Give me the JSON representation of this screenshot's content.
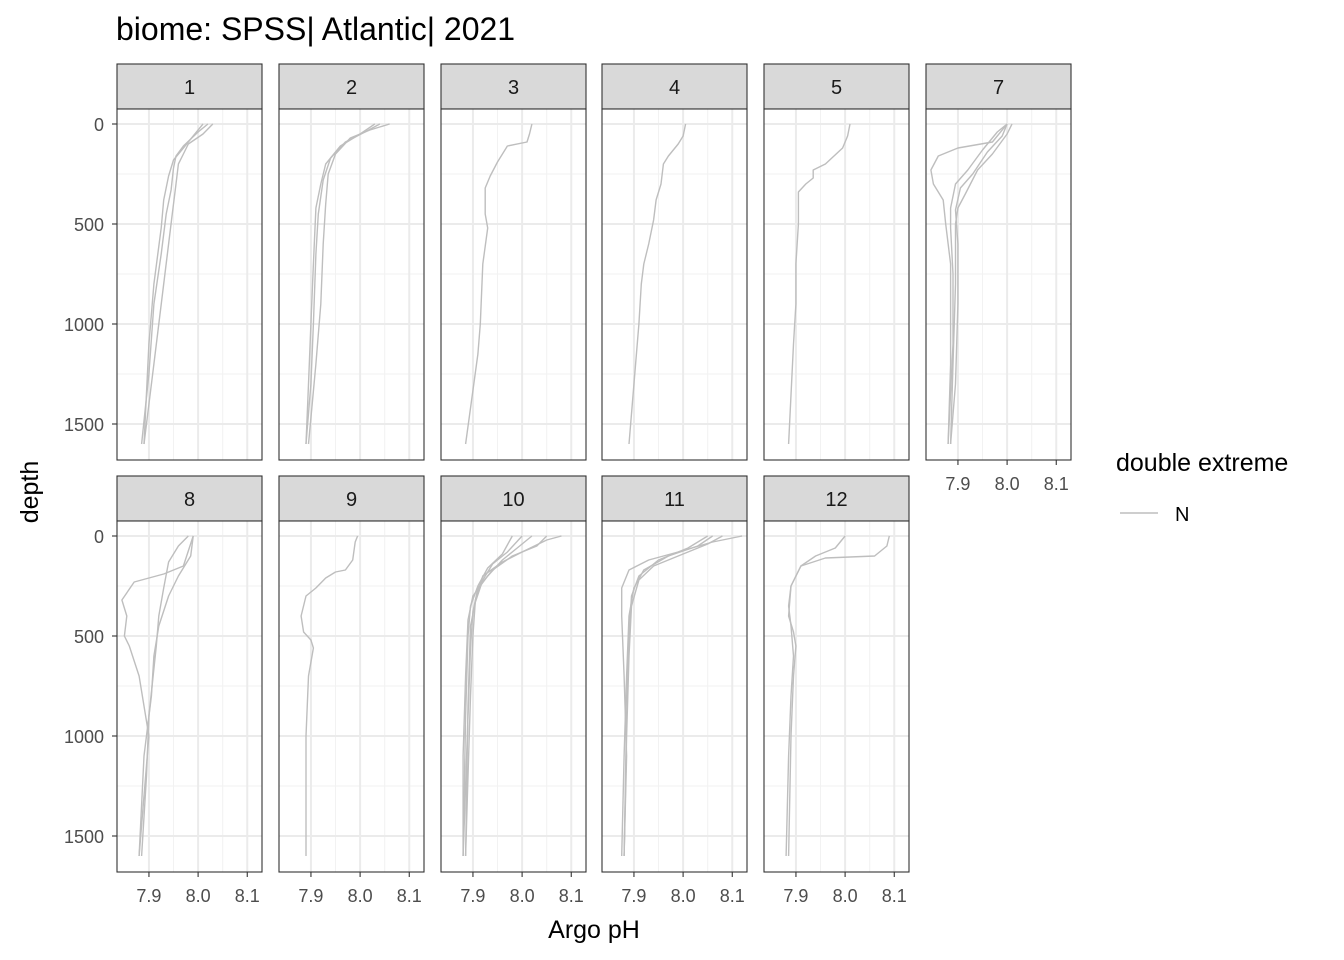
{
  "chart_data": {
    "type": "line",
    "title": "biome: SPSS| Atlantic| 2021",
    "xlabel": "Argo pH",
    "ylabel": "depth",
    "xlim": [
      7.835,
      8.13
    ],
    "ylim": [
      1680,
      -75
    ],
    "x_ticks": [
      7.9,
      8.0,
      8.1
    ],
    "x_tick_labels": [
      "7.9",
      "8.0",
      "8.1"
    ],
    "y_ticks": [
      0,
      500,
      1000,
      1500
    ],
    "y_tick_labels": [
      "0",
      "500",
      "1000",
      "1500"
    ],
    "y_reversed": true,
    "grid": true,
    "legend": {
      "title": "double extreme",
      "entries": [
        "N"
      ],
      "position": "right",
      "color": "#bebebe"
    },
    "series_color": "#bebebe",
    "panels": [
      {
        "label": "1",
        "profiles": [
          {
            "ph": [
              8.03,
              8.01,
              7.98,
              7.97,
              7.96,
              7.955,
              7.95,
              7.94,
              7.93,
              7.91,
              7.89
            ],
            "depth": [
              0,
              50,
              100,
              150,
              200,
              300,
              400,
              600,
              800,
              1200,
              1600
            ]
          },
          {
            "ph": [
              8.02,
              8.0,
              7.97,
              7.955,
              7.95,
              7.945,
              7.935,
              7.925,
              7.91,
              7.9,
              7.885
            ],
            "depth": [
              0,
              40,
              110,
              160,
              220,
              330,
              450,
              650,
              900,
              1250,
              1600
            ]
          },
          {
            "ph": [
              8.01,
              7.99,
              7.97,
              7.95,
              7.94,
              7.93,
              7.925,
              7.91,
              7.9,
              7.89
            ],
            "depth": [
              0,
              60,
              120,
              180,
              260,
              380,
              520,
              800,
              1100,
              1600
            ]
          }
        ]
      },
      {
        "label": "2",
        "profiles": [
          {
            "ph": [
              8.06,
              8.02,
              7.98,
              7.95,
              7.935,
              7.93,
              7.925,
              7.92,
              7.91,
              7.895
            ],
            "depth": [
              0,
              30,
              70,
              150,
              250,
              400,
              600,
              900,
              1200,
              1600
            ]
          },
          {
            "ph": [
              8.04,
              8.01,
              7.97,
              7.94,
              7.925,
              7.915,
              7.91,
              7.905,
              7.9,
              7.89
            ],
            "depth": [
              0,
              40,
              90,
              170,
              280,
              450,
              650,
              1000,
              1300,
              1600
            ]
          },
          {
            "ph": [
              8.03,
              8.0,
              7.96,
              7.93,
              7.92,
              7.91,
              7.905,
              7.9,
              7.895,
              7.89
            ],
            "depth": [
              0,
              50,
              110,
              200,
              300,
              420,
              700,
              1000,
              1300,
              1600
            ]
          }
        ]
      },
      {
        "label": "3",
        "profiles": [
          {
            "ph": [
              8.02,
              8.015,
              8.01,
              7.97,
              7.95,
              7.935,
              7.925,
              7.925,
              7.93,
              7.92,
              7.915,
              7.91,
              7.885
            ],
            "depth": [
              0,
              50,
              90,
              110,
              190,
              260,
              320,
              450,
              520,
              700,
              1000,
              1150,
              1600
            ]
          }
        ]
      },
      {
        "label": "4",
        "profiles": [
          {
            "ph": [
              8.005,
              8.0,
              7.99,
              7.97,
              7.96,
              7.955,
              7.945,
              7.94,
              7.93,
              7.92,
              7.915,
              7.91,
              7.89
            ],
            "depth": [
              0,
              60,
              100,
              160,
              200,
              300,
              380,
              480,
              600,
              700,
              800,
              1000,
              1600
            ]
          }
        ]
      },
      {
        "label": "5",
        "profiles": [
          {
            "ph": [
              8.01,
              8.005,
              7.995,
              7.96,
              7.935,
              7.935,
              7.92,
              7.905,
              7.905,
              7.9,
              7.9,
              7.895,
              7.885
            ],
            "depth": [
              0,
              60,
              120,
              200,
              230,
              270,
              300,
              340,
              500,
              700,
              900,
              1100,
              1600
            ]
          }
        ]
      },
      {
        "label": "7",
        "profiles": [
          {
            "ph": [
              8.0,
              7.97,
              7.9,
              7.86,
              7.845,
              7.85,
              7.87,
              7.875,
              7.885,
              7.885,
              7.88
            ],
            "depth": [
              0,
              90,
              120,
              160,
              230,
              300,
              380,
              500,
              700,
              1200,
              1600
            ]
          },
          {
            "ph": [
              8.01,
              8.0,
              7.97,
              7.94,
              7.915,
              7.9,
              7.895,
              7.895,
              7.89,
              7.885
            ],
            "depth": [
              0,
              50,
              150,
              230,
              350,
              420,
              500,
              800,
              1200,
              1600
            ]
          },
          {
            "ph": [
              8.0,
              7.99,
              7.96,
              7.93,
              7.905,
              7.895,
              7.9,
              7.9,
              7.895,
              7.885
            ],
            "depth": [
              0,
              60,
              140,
              250,
              320,
              430,
              600,
              900,
              1300,
              1600
            ]
          },
          {
            "ph": [
              8.0,
              7.98,
              7.95,
              7.92,
              7.895,
              7.885,
              7.885,
              7.89,
              7.89,
              7.88
            ],
            "depth": [
              0,
              40,
              130,
              230,
              300,
              420,
              520,
              750,
              1100,
              1600
            ]
          }
        ]
      },
      {
        "label": "8",
        "profiles": [
          {
            "ph": [
              7.99,
              7.97,
              7.93,
              7.87,
              7.845,
              7.855,
              7.85,
              7.86,
              7.88,
              7.9,
              7.88
            ],
            "depth": [
              0,
              150,
              190,
              230,
              320,
              400,
              500,
              550,
              700,
              1000,
              1600
            ]
          },
          {
            "ph": [
              7.99,
              7.985,
              7.96,
              7.94,
              7.92,
              7.91,
              7.905,
              7.89,
              7.88
            ],
            "depth": [
              0,
              100,
              200,
              300,
              450,
              600,
              800,
              1100,
              1600
            ]
          },
          {
            "ph": [
              7.98,
              7.96,
              7.94,
              7.93,
              7.92,
              7.915,
              7.9,
              7.895,
              7.885
            ],
            "depth": [
              0,
              50,
              130,
              260,
              400,
              550,
              900,
              1200,
              1600
            ]
          }
        ]
      },
      {
        "label": "9",
        "profiles": [
          {
            "ph": [
              7.995,
              7.99,
              7.985,
              7.97,
              7.95,
              7.93,
              7.91,
              7.89,
              7.88,
              7.885,
              7.9,
              7.905,
              7.895,
              7.89,
              7.89
            ],
            "depth": [
              0,
              30,
              120,
              170,
              180,
              210,
              260,
              300,
              400,
              480,
              520,
              560,
              700,
              1000,
              1600
            ]
          }
        ]
      },
      {
        "label": "10",
        "profiles": [
          {
            "ph": [
              8.08,
              8.05,
              8.0,
              7.96,
              7.92,
              7.905,
              7.9,
              7.895,
              7.89,
              7.885
            ],
            "depth": [
              0,
              20,
              80,
              130,
              200,
              320,
              500,
              800,
              1200,
              1600
            ]
          },
          {
            "ph": [
              8.05,
              8.03,
              7.98,
              7.94,
              7.91,
              7.9,
              7.895,
              7.89,
              7.885,
              7.88
            ],
            "depth": [
              0,
              50,
              100,
              170,
              260,
              380,
              560,
              900,
              1250,
              1600
            ]
          },
          {
            "ph": [
              8.02,
              7.99,
              7.96,
              7.93,
              7.9,
              7.89,
              7.885,
              7.88,
              7.88
            ],
            "depth": [
              0,
              60,
              120,
              200,
              300,
              420,
              700,
              1100,
              1600
            ]
          },
          {
            "ph": [
              7.98,
              7.96,
              7.93,
              7.91,
              7.895,
              7.89,
              7.885,
              7.88
            ],
            "depth": [
              0,
              90,
              160,
              250,
              350,
              500,
              900,
              1600
            ]
          },
          {
            "ph": [
              8.0,
              7.97,
              7.94,
              7.92,
              7.905,
              7.895,
              7.89,
              7.885
            ],
            "depth": [
              0,
              80,
              140,
              220,
              330,
              450,
              850,
              1600
            ]
          }
        ]
      },
      {
        "label": "11",
        "profiles": [
          {
            "ph": [
              8.12,
              8.06,
              7.99,
              7.93,
              7.89,
              7.875,
              7.875,
              7.88,
              7.885,
              7.88
            ],
            "depth": [
              0,
              30,
              80,
              120,
              170,
              260,
              400,
              700,
              1100,
              1600
            ]
          },
          {
            "ph": [
              8.08,
              8.05,
              8.0,
              7.94,
              7.91,
              7.895,
              7.89,
              7.885,
              7.88
            ],
            "depth": [
              0,
              40,
              90,
              150,
              220,
              350,
              600,
              1000,
              1600
            ]
          },
          {
            "ph": [
              8.06,
              8.03,
              7.97,
              7.92,
              7.9,
              7.89,
              7.885,
              7.88,
              7.875
            ],
            "depth": [
              0,
              50,
              100,
              170,
              260,
              400,
              700,
              1100,
              1600
            ]
          },
          {
            "ph": [
              8.05,
              8.01,
              7.95,
              7.91,
              7.895,
              7.89,
              7.885,
              7.88
            ],
            "depth": [
              0,
              60,
              120,
              200,
              300,
              500,
              900,
              1600
            ]
          }
        ]
      },
      {
        "label": "12",
        "profiles": [
          {
            "ph": [
              8.09,
              8.085,
              8.06,
              7.96,
              7.91,
              7.89,
              7.885,
              7.89,
              7.895,
              7.89,
              7.885,
              7.88
            ],
            "depth": [
              0,
              50,
              100,
              110,
              150,
              250,
              350,
              450,
              600,
              800,
              1100,
              1600
            ]
          },
          {
            "ph": [
              8.0,
              7.98,
              7.94,
              7.91,
              7.89,
              7.885,
              7.895,
              7.9,
              7.895,
              7.89,
              7.885
            ],
            "depth": [
              0,
              60,
              100,
              150,
              250,
              400,
              480,
              550,
              700,
              1000,
              1600
            ]
          }
        ]
      }
    ]
  }
}
